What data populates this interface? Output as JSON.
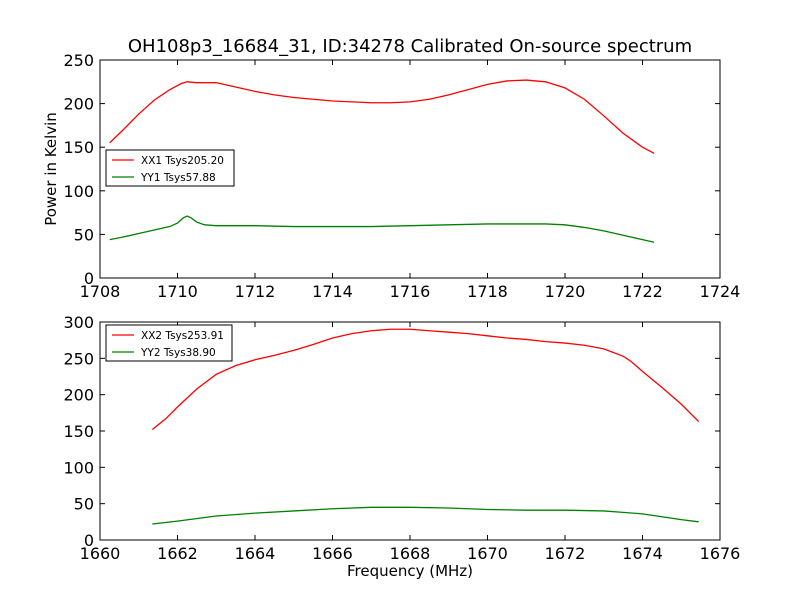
{
  "title": "OH108p3_16684_31, ID:34278 Calibrated On-source spectrum",
  "ylabel": "Power in Kelvin",
  "xlabel": "Frequency (MHz)",
  "chart_data": [
    {
      "type": "line",
      "xlim": [
        1708,
        1724
      ],
      "ylim": [
        0,
        250
      ],
      "xticks": [
        1708,
        1710,
        1712,
        1714,
        1716,
        1718,
        1720,
        1722,
        1724
      ],
      "yticks": [
        0,
        50,
        100,
        150,
        200,
        250
      ],
      "legend_position": "left",
      "series": [
        {
          "name": "XX1 Tsys205.20",
          "color": "#ff0000",
          "x": [
            1708.25,
            1708.6,
            1709.0,
            1709.4,
            1709.8,
            1710.1,
            1710.25,
            1710.5,
            1711.0,
            1711.5,
            1712.0,
            1712.5,
            1713.0,
            1713.5,
            1714.0,
            1714.5,
            1715.0,
            1715.5,
            1716.0,
            1716.5,
            1717.0,
            1717.5,
            1718.0,
            1718.5,
            1719.0,
            1719.5,
            1720.0,
            1720.5,
            1721.0,
            1721.5,
            1722.0,
            1722.3
          ],
          "y": [
            155,
            170,
            188,
            204,
            216,
            223,
            225,
            224,
            224,
            219,
            214,
            210,
            207,
            205,
            203,
            202,
            201,
            201,
            202,
            205,
            210,
            216,
            222,
            226,
            227,
            225,
            218,
            205,
            186,
            166,
            150,
            143
          ]
        },
        {
          "name": "YY1 Tsys57.88",
          "color": "#008000",
          "x": [
            1708.25,
            1708.6,
            1709.0,
            1709.4,
            1709.8,
            1710.0,
            1710.15,
            1710.25,
            1710.35,
            1710.5,
            1710.7,
            1711.0,
            1712.0,
            1713.0,
            1714.0,
            1715.0,
            1716.0,
            1717.0,
            1718.0,
            1719.0,
            1719.5,
            1720.0,
            1720.5,
            1721.0,
            1721.5,
            1722.0,
            1722.3
          ],
          "y": [
            44,
            47,
            51,
            55,
            59,
            63,
            69,
            71,
            69,
            64,
            61,
            60,
            60,
            59,
            59,
            59,
            60,
            61,
            62,
            62,
            62,
            61,
            58,
            54,
            49,
            44,
            41
          ]
        }
      ]
    },
    {
      "type": "line",
      "xlim": [
        1660,
        1676
      ],
      "ylim": [
        0,
        300
      ],
      "xticks": [
        1660,
        1662,
        1664,
        1666,
        1668,
        1670,
        1672,
        1674,
        1676
      ],
      "yticks": [
        0,
        50,
        100,
        150,
        200,
        250,
        300
      ],
      "legend_position": "upper left",
      "series": [
        {
          "name": "XX2 Tsys253.91",
          "color": "#ff0000",
          "x": [
            1661.35,
            1661.7,
            1662.0,
            1662.5,
            1663.0,
            1663.5,
            1664.0,
            1664.5,
            1665.0,
            1665.5,
            1666.0,
            1666.5,
            1667.0,
            1667.5,
            1668.0,
            1668.5,
            1669.0,
            1669.5,
            1670.0,
            1670.5,
            1671.0,
            1671.5,
            1672.0,
            1672.5,
            1673.0,
            1673.5,
            1673.7,
            1674.0,
            1674.5,
            1675.0,
            1675.45
          ],
          "y": [
            152,
            167,
            183,
            208,
            228,
            240,
            248,
            254,
            261,
            269,
            278,
            284,
            288,
            290,
            290,
            288,
            286,
            284,
            281,
            278,
            276,
            273,
            271,
            268,
            263,
            253,
            246,
            232,
            210,
            187,
            163
          ]
        },
        {
          "name": "YY2 Tsys38.90",
          "color": "#008000",
          "x": [
            1661.35,
            1662.0,
            1663.0,
            1664.0,
            1665.0,
            1666.0,
            1667.0,
            1668.0,
            1669.0,
            1670.0,
            1671.0,
            1672.0,
            1673.0,
            1673.5,
            1674.0,
            1674.5,
            1675.0,
            1675.45
          ],
          "y": [
            22,
            26,
            33,
            37,
            40,
            43,
            45,
            45,
            44,
            42,
            41,
            41,
            40,
            38,
            36,
            32,
            28,
            25
          ]
        }
      ]
    }
  ]
}
